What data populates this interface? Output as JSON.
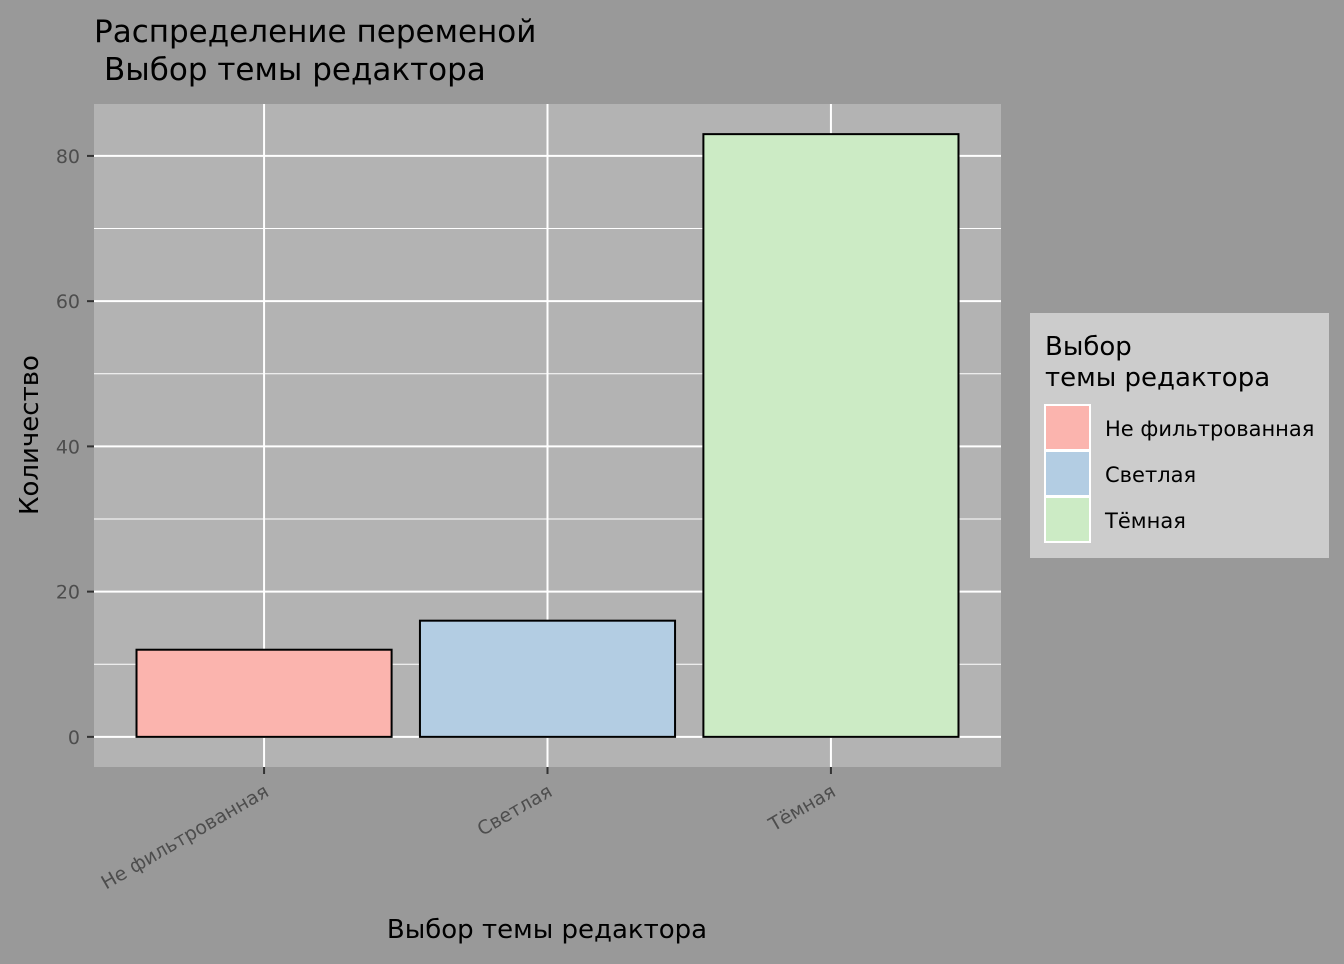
{
  "chart_data": {
    "type": "bar",
    "title": "Распределение переменой",
    "subtitle": "Выбор темы редактора",
    "xlabel": "Выбор темы редактора",
    "ylabel": "Количество",
    "categories": [
      "Не фильтрованная",
      "Светлая",
      "Тёмная"
    ],
    "values": [
      12,
      16,
      83
    ],
    "colors": [
      "#fbb4ae",
      "#b3cde3",
      "#ccebc5"
    ],
    "ylim": [
      -4.15,
      87.15
    ],
    "yticks": [
      0,
      20,
      40,
      60,
      80
    ],
    "grid": true,
    "legend": {
      "title_lines": [
        "Выбор",
        "темы редактора"
      ],
      "position": "right"
    }
  },
  "theme": {
    "background": "#999999",
    "panel": "#b3b3b3",
    "legend_background": "#cccccc",
    "grid": "#ffffff",
    "bar_outline": "#000000",
    "tick_label_color": "#4d4d4d"
  }
}
